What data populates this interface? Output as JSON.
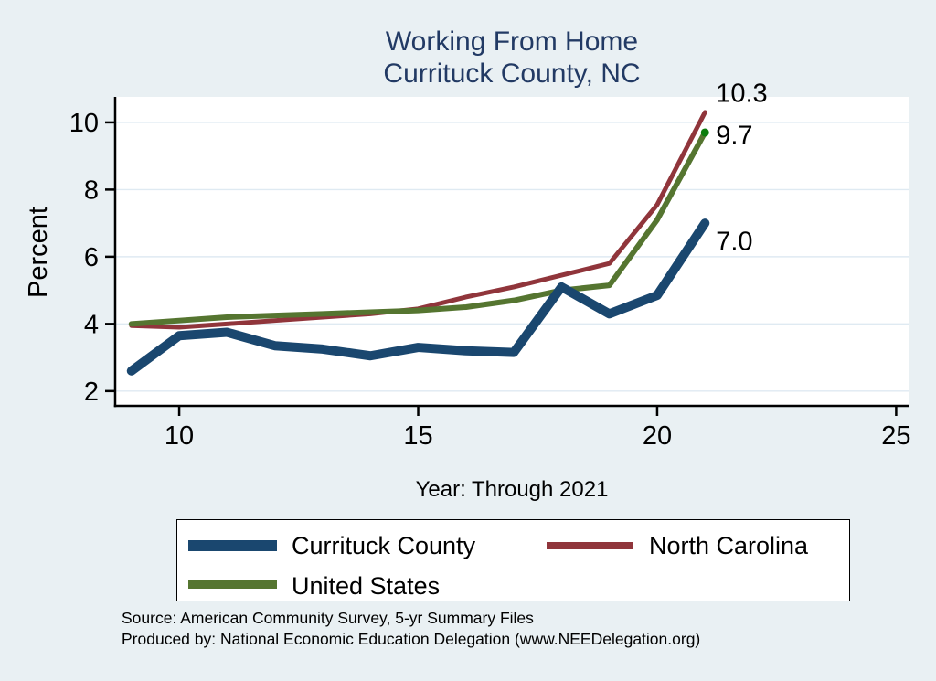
{
  "title": {
    "line1": "Working From Home",
    "line2": "Currituck County, NC"
  },
  "colors": {
    "background": "#e9f0f3",
    "plot_background": "#ffffff",
    "gridline": "#dfeaf2",
    "axis": "#000000",
    "title_text": "#223a64",
    "currituck_line": "#1a476f",
    "north_carolina_line": "#90353b",
    "united_states_line": "#557530",
    "united_states_marker": "#0c7d0c"
  },
  "x_axis": {
    "label": "Year: Through 2021",
    "ticks": [
      10,
      15,
      20,
      25
    ]
  },
  "y_axis": {
    "label": "Percent",
    "ticks": [
      2,
      4,
      6,
      8,
      10
    ]
  },
  "legend": {
    "items": [
      "Currituck County",
      "North Carolina",
      "United States"
    ]
  },
  "footer": {
    "line1": "Source: American Community Survey, 5-yr Summary Files",
    "line2": "Produced by: National Economic Education Delegation (www.NEEDelegation.org)"
  },
  "chart_data": {
    "type": "line",
    "title": "Working From Home - Currituck County, NC",
    "xlabel": "Year: Through 2021",
    "ylabel": "Percent",
    "categories": [
      "2009",
      "2010",
      "2011",
      "2012",
      "2013",
      "2014",
      "2015",
      "2016",
      "2017",
      "2018",
      "2019",
      "2020",
      "2021"
    ],
    "x": [
      9,
      10,
      11,
      12,
      13,
      14,
      15,
      16,
      17,
      18,
      19,
      20,
      21
    ],
    "xlim": [
      8.66,
      25.26
    ],
    "ylim": [
      1.56,
      10.76
    ],
    "xticks": [
      10,
      15,
      20,
      25
    ],
    "yticks": [
      2,
      4,
      6,
      8,
      10
    ],
    "grid": "horizontal",
    "legend_position": "bottom",
    "series": [
      {
        "name": "Currituck County",
        "color": "#1a476f",
        "line_width": 10,
        "end_label": "7.0",
        "values": [
          2.6,
          3.65,
          3.75,
          3.35,
          3.25,
          3.05,
          3.3,
          3.2,
          3.15,
          5.1,
          4.3,
          4.85,
          7.0
        ]
      },
      {
        "name": "North Carolina",
        "color": "#90353b",
        "line_width": 5,
        "end_label": "10.3",
        "values": [
          3.95,
          3.9,
          4.0,
          4.1,
          4.2,
          4.3,
          4.45,
          4.8,
          5.1,
          5.45,
          5.8,
          7.55,
          10.3
        ]
      },
      {
        "name": "United States",
        "color": "#557530",
        "line_width": 6,
        "end_label": "9.7",
        "end_marker_color": "#0c7d0c",
        "values": [
          4.0,
          4.1,
          4.2,
          4.25,
          4.3,
          4.35,
          4.4,
          4.5,
          4.7,
          5.0,
          5.15,
          7.1,
          9.7
        ]
      }
    ]
  }
}
